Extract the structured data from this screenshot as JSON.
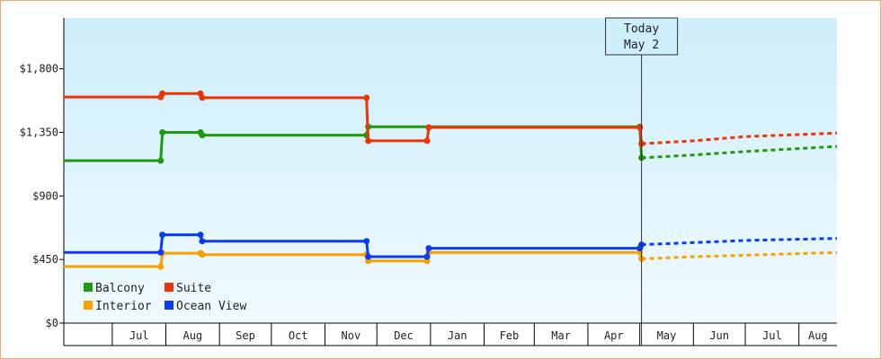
{
  "chart_data": {
    "type": "line",
    "title": "",
    "xlabel": "",
    "ylabel": "",
    "ylim": [
      0,
      2160
    ],
    "y_ticks": [
      {
        "value": 0,
        "label": "$0"
      },
      {
        "value": 450,
        "label": "$450"
      },
      {
        "value": 900,
        "label": "$900"
      },
      {
        "value": 1350,
        "label": "$1,350"
      },
      {
        "value": 1800,
        "label": "$1,800"
      }
    ],
    "x_range": [
      "2023-06-03",
      "2024-08-23"
    ],
    "x_ticks": [
      {
        "date": "2023-06-03",
        "label": ""
      },
      {
        "date": "2023-07-01",
        "label": "Jul"
      },
      {
        "date": "2023-08-01",
        "label": "Aug"
      },
      {
        "date": "2023-09-01",
        "label": "Sep"
      },
      {
        "date": "2023-10-01",
        "label": "Oct"
      },
      {
        "date": "2023-11-01",
        "label": "Nov"
      },
      {
        "date": "2023-12-01",
        "label": "Dec"
      },
      {
        "date": "2024-01-01",
        "label": "Jan"
      },
      {
        "date": "2024-02-01",
        "label": "Feb"
      },
      {
        "date": "2024-03-01",
        "label": "Mar"
      },
      {
        "date": "2024-04-01",
        "label": "Apr"
      },
      {
        "date": "2024-05-01",
        "label": "May"
      },
      {
        "date": "2024-06-01",
        "label": "Jun"
      },
      {
        "date": "2024-07-01",
        "label": "Jul"
      },
      {
        "date": "2024-08-01",
        "label": "Aug"
      }
    ],
    "today": {
      "date": "2024-05-02",
      "line1": "Today",
      "line2": "May 2"
    },
    "grid": false,
    "legend_position": "bottom-left",
    "series": [
      {
        "name": "Balcony",
        "color": "#1e9b0c",
        "points": [
          [
            "2023-06-03",
            1150
          ],
          [
            "2023-07-29",
            1150
          ],
          [
            "2023-07-30",
            1350
          ],
          [
            "2023-08-21",
            1350
          ],
          [
            "2023-08-22",
            1330
          ],
          [
            "2023-11-25",
            1330
          ],
          [
            "2023-11-26",
            1390
          ],
          [
            "2024-05-01",
            1390
          ],
          [
            "2024-05-02",
            1170
          ]
        ],
        "forecast": [
          [
            "2024-05-02",
            1170
          ],
          [
            "2024-06-01",
            1190
          ],
          [
            "2024-07-01",
            1215
          ],
          [
            "2024-08-23",
            1250
          ]
        ]
      },
      {
        "name": "Suite",
        "color": "#ee3306",
        "points": [
          [
            "2023-06-03",
            1600
          ],
          [
            "2023-07-29",
            1600
          ],
          [
            "2023-07-30",
            1625
          ],
          [
            "2023-08-21",
            1625
          ],
          [
            "2023-08-22",
            1595
          ],
          [
            "2023-11-25",
            1595
          ],
          [
            "2023-11-26",
            1290
          ],
          [
            "2023-12-30",
            1290
          ],
          [
            "2023-12-31",
            1385
          ],
          [
            "2024-05-01",
            1385
          ],
          [
            "2024-05-02",
            1270
          ]
        ],
        "forecast": [
          [
            "2024-05-02",
            1270
          ],
          [
            "2024-06-01",
            1290
          ],
          [
            "2024-07-01",
            1320
          ],
          [
            "2024-08-23",
            1345
          ]
        ]
      },
      {
        "name": "Interior",
        "color": "#f7a000",
        "points": [
          [
            "2023-06-03",
            400
          ],
          [
            "2023-07-29",
            400
          ],
          [
            "2023-07-30",
            495
          ],
          [
            "2023-08-21",
            495
          ],
          [
            "2023-08-22",
            485
          ],
          [
            "2023-11-25",
            485
          ],
          [
            "2023-11-26",
            440
          ],
          [
            "2023-12-30",
            440
          ],
          [
            "2023-12-31",
            500
          ],
          [
            "2024-05-01",
            500
          ],
          [
            "2024-05-02",
            455
          ]
        ],
        "forecast": [
          [
            "2024-05-02",
            455
          ],
          [
            "2024-06-01",
            470
          ],
          [
            "2024-07-01",
            480
          ],
          [
            "2024-08-23",
            500
          ]
        ]
      },
      {
        "name": "Ocean View",
        "color": "#0a3cf5",
        "points": [
          [
            "2023-06-03",
            500
          ],
          [
            "2023-07-29",
            500
          ],
          [
            "2023-07-30",
            625
          ],
          [
            "2023-08-21",
            625
          ],
          [
            "2023-08-22",
            580
          ],
          [
            "2023-11-25",
            580
          ],
          [
            "2023-11-26",
            470
          ],
          [
            "2023-12-30",
            470
          ],
          [
            "2023-12-31",
            530
          ],
          [
            "2024-05-01",
            530
          ],
          [
            "2024-05-02",
            555
          ]
        ],
        "forecast": [
          [
            "2024-05-02",
            555
          ],
          [
            "2024-06-01",
            570
          ],
          [
            "2024-07-01",
            585
          ],
          [
            "2024-08-23",
            600
          ]
        ]
      }
    ]
  }
}
